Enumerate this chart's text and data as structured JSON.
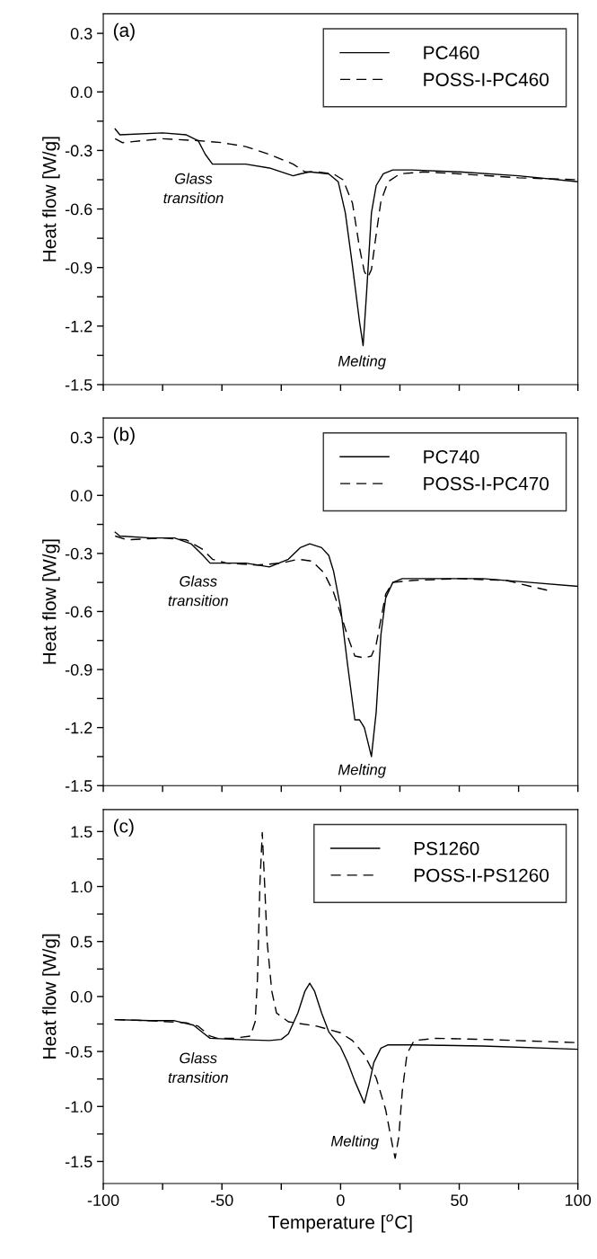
{
  "chart_data": [
    {
      "type": "line",
      "title": "(a)",
      "ylabel": "Heat flow [W/g]",
      "xlim": [
        -100,
        100
      ],
      "ylim": [
        -1.5,
        0.4
      ],
      "xticks": [
        -100,
        {
          "value": -75,
          "label": null
        },
        -50,
        {
          "value": -25,
          "label": null
        },
        0,
        {
          "value": 25,
          "label": null
        },
        50,
        {
          "value": 75,
          "label": null
        },
        100
      ],
      "yticks": [
        -1.5,
        {
          "value": -1.35,
          "label": null
        },
        -1.2,
        {
          "value": -1.05,
          "label": null
        },
        -0.9,
        {
          "value": -0.75,
          "label": null
        },
        -0.6,
        {
          "value": -0.45,
          "label": null
        },
        -0.3,
        {
          "value": -0.15,
          "label": null
        },
        {
          "value": 0,
          "label": "0.0"
        },
        {
          "value": 0.15,
          "label": null
        },
        0.3
      ],
      "tick_labels": "y",
      "legend": "top right",
      "annotations": [
        "Glass\ntransition",
        "Melting"
      ],
      "series": [
        {
          "name": "PC460",
          "color": "#000000",
          "line_style": "solid",
          "x": [
            -95,
            -93,
            -75,
            -65,
            -60,
            -57,
            -54,
            -40,
            -30,
            -20,
            -17,
            -13,
            -5,
            -1,
            2,
            5,
            8,
            9.5,
            11,
            13,
            15,
            18,
            22,
            30,
            50,
            75,
            100
          ],
          "values": [
            -0.19,
            -0.22,
            -0.21,
            -0.22,
            -0.25,
            -0.32,
            -0.37,
            -0.37,
            -0.39,
            -0.43,
            -0.42,
            -0.41,
            -0.42,
            -0.46,
            -0.62,
            -0.89,
            -1.18,
            -1.3,
            -1.02,
            -0.62,
            -0.48,
            -0.42,
            -0.4,
            -0.4,
            -0.41,
            -0.43,
            -0.46
          ]
        },
        {
          "name": "POSS-I-PC460",
          "color": "#000000",
          "line_style": "dashed",
          "x": [
            -95,
            -92,
            -75,
            -60,
            -50,
            -40,
            -30,
            -20,
            -15,
            -10,
            -3,
            1,
            5,
            8,
            10,
            11.5,
            13,
            15,
            17,
            20,
            25,
            35,
            50,
            75,
            100
          ],
          "values": [
            -0.24,
            -0.26,
            -0.24,
            -0.25,
            -0.26,
            -0.28,
            -0.32,
            -0.37,
            -0.41,
            -0.41,
            -0.42,
            -0.45,
            -0.57,
            -0.8,
            -0.92,
            -0.95,
            -0.91,
            -0.73,
            -0.56,
            -0.46,
            -0.42,
            -0.41,
            -0.42,
            -0.44,
            -0.45
          ]
        }
      ]
    },
    {
      "type": "line",
      "title": "(b)",
      "ylabel": "Heat flow [W/g]",
      "xlim": [
        -100,
        100
      ],
      "ylim": [
        -1.5,
        0.4
      ],
      "xticks": [
        -100,
        {
          "value": -75,
          "label": null
        },
        -50,
        {
          "value": -25,
          "label": null
        },
        0,
        {
          "value": 25,
          "label": null
        },
        50,
        {
          "value": 75,
          "label": null
        },
        100
      ],
      "yticks": [
        -1.5,
        {
          "value": -1.35,
          "label": null
        },
        -1.2,
        {
          "value": -1.05,
          "label": null
        },
        -0.9,
        {
          "value": -0.75,
          "label": null
        },
        -0.6,
        {
          "value": -0.45,
          "label": null
        },
        -0.3,
        {
          "value": -0.15,
          "label": null
        },
        {
          "value": 0,
          "label": "0.0"
        },
        {
          "value": 0.15,
          "label": null
        },
        0.3
      ],
      "tick_labels": "y",
      "legend": "top right",
      "annotations": [
        "Glass\ntransition",
        "Melting"
      ],
      "series": [
        {
          "name": "PC740",
          "color": "#000000",
          "line_style": "solid",
          "x": [
            -95,
            -93,
            -80,
            -70,
            -63,
            -58,
            -55,
            -40,
            -30,
            -22,
            -17,
            -13,
            -8,
            -5,
            -3,
            0,
            3,
            6,
            8,
            10,
            13,
            15,
            17,
            19,
            22,
            26,
            40,
            60,
            80,
            100
          ],
          "values": [
            -0.19,
            -0.21,
            -0.22,
            -0.22,
            -0.25,
            -0.31,
            -0.35,
            -0.35,
            -0.37,
            -0.33,
            -0.27,
            -0.25,
            -0.27,
            -0.31,
            -0.39,
            -0.58,
            -0.88,
            -1.16,
            -1.16,
            -1.2,
            -1.35,
            -1.12,
            -0.72,
            -0.53,
            -0.45,
            -0.43,
            -0.43,
            -0.43,
            -0.45,
            -0.47
          ]
        },
        {
          "name": "POSS-I-PC470",
          "color": "#000000",
          "line_style": "dashed",
          "x": [
            -95,
            -90,
            -75,
            -65,
            -58,
            -54,
            -48,
            -35,
            -25,
            -18,
            -12,
            -7,
            -3,
            0,
            3,
            6,
            10,
            13,
            15,
            17,
            19,
            22,
            30,
            50,
            70,
            80,
            87
          ],
          "values": [
            -0.21,
            -0.23,
            -0.22,
            -0.23,
            -0.28,
            -0.33,
            -0.35,
            -0.36,
            -0.35,
            -0.33,
            -0.34,
            -0.4,
            -0.5,
            -0.61,
            -0.73,
            -0.83,
            -0.84,
            -0.83,
            -0.77,
            -0.64,
            -0.51,
            -0.45,
            -0.44,
            -0.43,
            -0.44,
            -0.47,
            -0.49
          ]
        }
      ]
    },
    {
      "type": "line",
      "title": "(c)",
      "ylabel": "Heat flow [W/g]",
      "xlabel": "Temperature [$^{o}$C]",
      "xlim": [
        -100,
        100
      ],
      "ylim": [
        -1.7,
        1.7
      ],
      "xticks": [
        -100,
        {
          "value": -75,
          "label": null
        },
        -50,
        {
          "value": -25,
          "label": null
        },
        0,
        {
          "value": 25,
          "label": null
        },
        50,
        {
          "value": 75,
          "label": null
        },
        100
      ],
      "yticks": [
        -1.5,
        {
          "value": -1.25,
          "label": null
        },
        {
          "value": -1.0,
          "label": "-1.0"
        },
        {
          "value": -0.75,
          "label": null
        },
        -0.5,
        {
          "value": -0.25,
          "label": null
        },
        {
          "value": 0,
          "label": "0.0"
        },
        {
          "value": 0.25,
          "label": null
        },
        0.5,
        {
          "value": 0.75,
          "label": null
        },
        {
          "value": 1,
          "label": "1.0"
        },
        {
          "value": 1.25,
          "label": null
        },
        1.5
      ],
      "legend": "top right",
      "annotations": [
        "Glass\ntransition",
        "Melting"
      ],
      "series": [
        {
          "name": "PS1260",
          "color": "#000000",
          "line_style": "solid",
          "x": [
            -95,
            -80,
            -70,
            -62,
            -58,
            -55,
            -45,
            -30,
            -25,
            -22,
            -18,
            -15,
            -13,
            -11,
            -8,
            -5,
            0,
            3,
            6,
            10,
            12,
            14,
            17,
            20,
            30,
            60,
            100
          ],
          "values": [
            -0.21,
            -0.22,
            -0.22,
            -0.26,
            -0.33,
            -0.38,
            -0.39,
            -0.4,
            -0.39,
            -0.34,
            -0.15,
            0.05,
            0.12,
            0.05,
            -0.15,
            -0.32,
            -0.46,
            -0.6,
            -0.77,
            -0.97,
            -0.8,
            -0.6,
            -0.47,
            -0.44,
            -0.44,
            -0.45,
            -0.48
          ]
        },
        {
          "name": "POSS-I-PS1260",
          "color": "#000000",
          "line_style": "dashed",
          "x": [
            -95,
            -80,
            -65,
            -60,
            -55,
            -52,
            -45,
            -38,
            -36,
            -35,
            -34,
            -33,
            -32,
            -31,
            -29,
            -27,
            -22,
            -10,
            0,
            5,
            10,
            15,
            19,
            22,
            23,
            24.5,
            26,
            28,
            31,
            40,
            60,
            100
          ],
          "values": [
            -0.21,
            -0.22,
            -0.24,
            -0.27,
            -0.36,
            -0.38,
            -0.38,
            -0.36,
            -0.23,
            0.17,
            1.02,
            1.49,
            1.02,
            0.51,
            0.05,
            -0.15,
            -0.23,
            -0.27,
            -0.33,
            -0.4,
            -0.53,
            -0.74,
            -1.03,
            -1.37,
            -1.47,
            -1.28,
            -0.86,
            -0.52,
            -0.4,
            -0.38,
            -0.39,
            -0.42
          ]
        }
      ]
    }
  ]
}
